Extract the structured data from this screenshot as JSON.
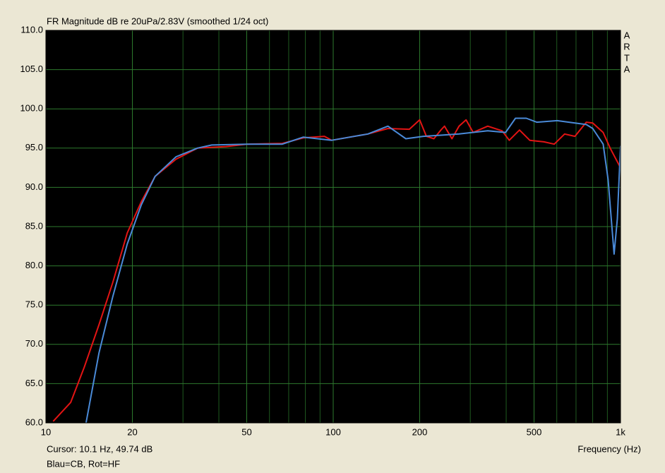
{
  "chart_data": {
    "type": "line",
    "title": "FR Magnitude dB re 20uPa/2.83V (smoothed 1/24 oct)",
    "side_label": [
      "A",
      "R",
      "T",
      "A"
    ],
    "x_label": "Frequency (Hz)",
    "cursor_text": "Cursor: 10.1 Hz, 49.74 dB",
    "note": "Blau=CB, Rot=HF",
    "xscale": "log",
    "xlim": [
      10,
      1000
    ],
    "ylim": [
      60,
      110
    ],
    "xticks": [
      10,
      20,
      50,
      100,
      200,
      500,
      {
        "value": 1000,
        "label": "1k"
      }
    ],
    "xgrid_minor": [
      30,
      40,
      60,
      70,
      80,
      90,
      300,
      400,
      600,
      700,
      800,
      900
    ],
    "yticks": [
      {
        "value": 60,
        "label": "60.0"
      },
      {
        "value": 65,
        "label": "65.0"
      },
      {
        "value": 70,
        "label": "70.0"
      },
      {
        "value": 75,
        "label": "75.0"
      },
      {
        "value": 80,
        "label": "80.0"
      },
      {
        "value": 85,
        "label": "85.0"
      },
      {
        "value": 90,
        "label": "90.0"
      },
      {
        "value": 95,
        "label": "95.0"
      },
      {
        "value": 100,
        "label": "100.0"
      },
      {
        "value": 105,
        "label": "105.0"
      },
      {
        "value": 110,
        "label": "110.0"
      }
    ],
    "grid": true,
    "series": [
      {
        "color": "#e31414",
        "x": [
          10.6,
          12.2,
          13.6,
          15.3,
          17.1,
          19.2,
          21.5,
          24.0,
          28.4,
          33.7,
          42.4,
          50.1,
          66.5,
          78.7,
          93.2,
          98.8,
          132,
          155,
          184,
          200,
          211,
          224,
          237,
          244,
          259,
          274,
          290,
          307,
          345,
          387,
          410,
          445,
          483,
          541,
          588,
          639,
          694,
          760,
          800,
          870,
          920,
          1000
        ],
        "values": [
          60.2,
          62.6,
          67.1,
          72.5,
          77.9,
          84.2,
          88.2,
          91.4,
          93.6,
          95.0,
          95.2,
          95.5,
          95.6,
          96.3,
          96.5,
          96.0,
          96.8,
          97.5,
          97.4,
          98.6,
          96.5,
          96.2,
          97.3,
          97.8,
          96.2,
          97.8,
          98.6,
          97.0,
          97.8,
          97.2,
          96.0,
          97.3,
          96.0,
          95.8,
          95.5,
          96.8,
          96.5,
          98.3,
          98.2,
          97.0,
          95.0,
          92.5
        ]
      },
      {
        "color": "#4a8ad8",
        "x": [
          13.8,
          15.3,
          17.1,
          19.2,
          21.5,
          24.0,
          28.4,
          33.7,
          37.8,
          50.1,
          66.5,
          78.7,
          98.8,
          132,
          155,
          179,
          206,
          274,
          345,
          398,
          431,
          470,
          511,
          602,
          694,
          760,
          800,
          870,
          905,
          950,
          975,
          1000
        ],
        "values": [
          60.0,
          68.9,
          76.1,
          82.8,
          87.8,
          91.4,
          93.9,
          95.0,
          95.4,
          95.5,
          95.5,
          96.4,
          96.0,
          96.8,
          97.8,
          96.2,
          96.5,
          96.8,
          97.2,
          97.0,
          98.8,
          98.8,
          98.3,
          98.5,
          98.2,
          98.0,
          97.5,
          95.5,
          91.0,
          81.5,
          86.0,
          95.3
        ]
      }
    ]
  }
}
